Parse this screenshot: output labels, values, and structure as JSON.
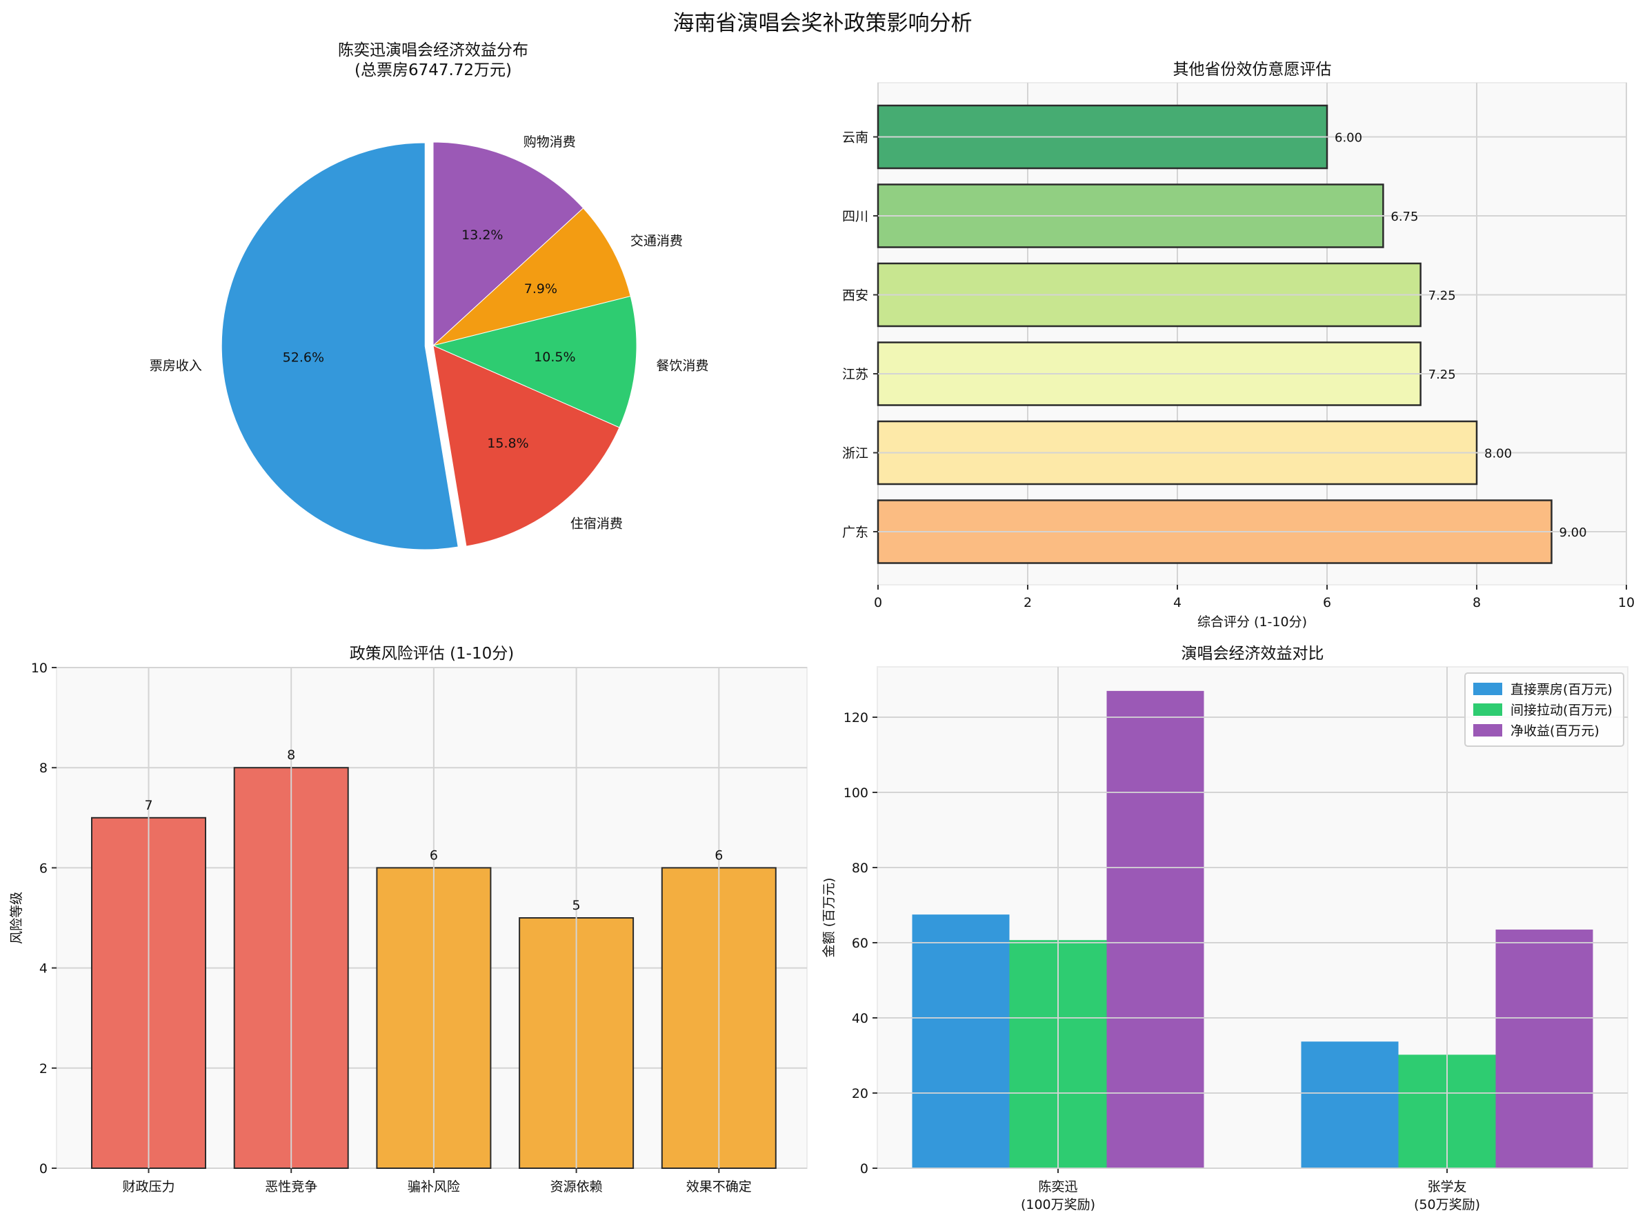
{
  "figure": {
    "title": "海南省演唱会奖补政策影响分析"
  },
  "chart_data": [
    {
      "id": "pie",
      "type": "pie",
      "title": "陈奕迅演唱会经济效益分布",
      "subtitle": "(总票房6747.72万元)",
      "labels": [
        "票房收入",
        "住宿消费",
        "餐饮消费",
        "交通消费",
        "购物消费"
      ],
      "values": [
        52.6,
        15.8,
        10.5,
        7.9,
        13.2
      ],
      "value_labels": [
        "52.6%",
        "15.8%",
        "10.5%",
        "7.9%",
        "13.2%"
      ],
      "colors": [
        "#3498db",
        "#e74c3c",
        "#2ecc71",
        "#f39c12",
        "#9b59b6"
      ],
      "explode": [
        0.04,
        0,
        0,
        0,
        0
      ],
      "start_angle": 90
    },
    {
      "id": "imitation",
      "type": "bar",
      "orientation": "horizontal",
      "title": "其他省份效仿意愿评估",
      "categories": [
        "广东",
        "浙江",
        "江苏",
        "西安",
        "四川",
        "云南"
      ],
      "values": [
        9.0,
        8.0,
        7.25,
        7.25,
        6.75,
        6.0
      ],
      "value_labels": [
        "9.00",
        "8.00",
        "7.25",
        "7.25",
        "6.75",
        "6.00"
      ],
      "colors": [
        "#fbbc82",
        "#fde9a8",
        "#f1f7b5",
        "#c8e690",
        "#91cf82",
        "#46ac72"
      ],
      "xlabel": "综合评分 (1-10分)",
      "ylabel": "",
      "xlim": [
        0,
        10
      ],
      "xticks": [
        0,
        2,
        4,
        6,
        8,
        10
      ],
      "grid": true
    },
    {
      "id": "risk",
      "type": "bar",
      "title": "政策风险评估 (1-10分)",
      "categories": [
        "财政压力",
        "恶性竞争",
        "骗补风险",
        "资源依赖",
        "效果不确定"
      ],
      "values": [
        7,
        8,
        6,
        5,
        6
      ],
      "value_labels": [
        "7",
        "8",
        "6",
        "5",
        "6"
      ],
      "colors": [
        "#eb6f62",
        "#eb6f62",
        "#f3ae40",
        "#f3ae40",
        "#f3ae40"
      ],
      "xlabel": "",
      "ylabel": "风险等级",
      "ylim": [
        0,
        10
      ],
      "yticks": [
        0,
        2,
        4,
        6,
        8,
        10
      ],
      "grid": true
    },
    {
      "id": "benefit",
      "type": "bar",
      "title": "演唱会经济效益对比",
      "categories": [
        "陈奕迅\n(100万奖励)",
        "张学友\n(50万奖励)"
      ],
      "series": [
        {
          "name": "直接票房(百万元)",
          "values": [
            67.5,
            33.7
          ],
          "color": "#3498db"
        },
        {
          "name": "间接拉动(百万元)",
          "values": [
            60.7,
            30.2
          ],
          "color": "#2ecc71"
        },
        {
          "name": "净收益(百万元)",
          "values": [
            127.0,
            63.5
          ],
          "color": "#9b59b6"
        }
      ],
      "xlabel": "",
      "ylabel": "金额 (百万元)",
      "ylim": [
        0,
        133.4
      ],
      "yticks": [
        0,
        20,
        40,
        60,
        80,
        100,
        120
      ],
      "legend_position": "upper right",
      "grid": true
    }
  ]
}
